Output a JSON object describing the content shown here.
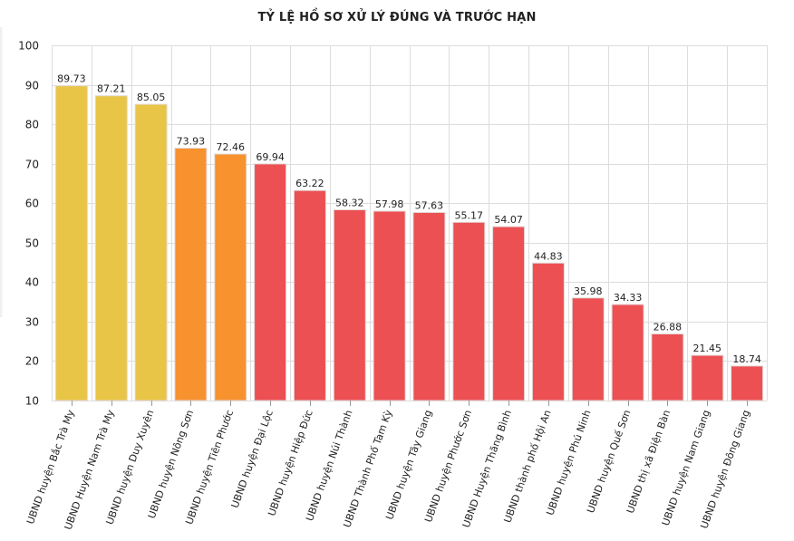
{
  "chart_data": {
    "type": "bar",
    "title": "TỶ LỆ HỒ SƠ XỬ LÝ ĐÚNG VÀ TRƯỚC HẠN",
    "xlabel": "",
    "ylabel": "",
    "ylim": [
      10,
      100
    ],
    "yticks": [
      10,
      20,
      30,
      40,
      50,
      60,
      70,
      80,
      90,
      100
    ],
    "grid": true,
    "categories": [
      "UBND huyện Bắc Trà My",
      "UBND Huyện Nam Trà My",
      "UBND huyện Duy Xuyên",
      "UBND huyện Nông Sơn",
      "UBND huyện Tiên Phước",
      "UBND huyện Đại Lộc",
      "UBND huyện Hiệp Đức",
      "UBND huyện Núi Thành",
      "UBND Thành Phố Tam Kỳ",
      "UBND huyện Tây Giang",
      "UBND huyện Phước Sơn",
      "UBND Huyện Thăng Bình",
      "UBND thành phố Hội An",
      "UBND huyện Phú Ninh",
      "UBND huyện Quế Sơn",
      "UBND thị xã Điện Bàn",
      "UBND huyện Nam Giang",
      "UBND huyện Đông Giang"
    ],
    "values": [
      89.73,
      87.21,
      85.05,
      73.93,
      72.46,
      69.94,
      63.22,
      58.32,
      57.98,
      57.63,
      55.17,
      54.07,
      44.83,
      35.98,
      34.33,
      26.88,
      21.45,
      18.74
    ],
    "value_labels": [
      "89.73",
      "87.21",
      "85.05",
      "73.93",
      "72.46",
      "69.94",
      "63.22",
      "58.32",
      "57.98",
      "57.63",
      "55.17",
      "54.07",
      "44.83",
      "35.98",
      "34.33",
      "26.88",
      "21.45",
      "18.74"
    ],
    "bar_colors": [
      "#E8C547",
      "#E8C547",
      "#E8C547",
      "#F7922F",
      "#F7922F",
      "#EC5053",
      "#EC5053",
      "#EC5053",
      "#EC5053",
      "#EC5053",
      "#EC5053",
      "#EC5053",
      "#EC5053",
      "#EC5053",
      "#EC5053",
      "#EC5053",
      "#EC5053",
      "#EC5053"
    ],
    "grid_color": "#dddddd"
  }
}
